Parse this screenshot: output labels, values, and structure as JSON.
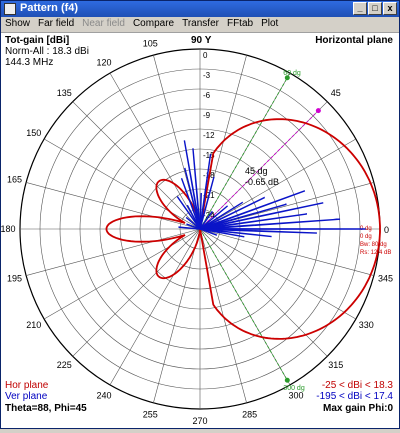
{
  "window": {
    "title": "Pattern",
    "subtitle": "(f4)",
    "buttons": [
      "_",
      "□",
      "x"
    ]
  },
  "menu": [
    {
      "label": "Show",
      "enabled": true
    },
    {
      "label": "Far field",
      "enabled": true
    },
    {
      "label": "Near field",
      "enabled": false
    },
    {
      "label": "Compare",
      "enabled": true
    },
    {
      "label": "Transfer",
      "enabled": true
    },
    {
      "label": "FFtab",
      "enabled": true
    },
    {
      "label": "Plot",
      "enabled": true
    }
  ],
  "info": {
    "gain_title": "Tot-gain [dBi]",
    "norm": "Norm-All : 18.3 dBi",
    "freq": "144.3 MHz",
    "plane": "Horizontal plane",
    "y_axis": "90 Y",
    "x_axis": "0",
    "beam_angle": "45 dg",
    "beam_db": "-0.65 dB",
    "marker_top": "60 dg",
    "marker_bottom": "300 dg",
    "right_labels": [
      "0 dg",
      "0 dg",
      "Bw: 80 dg",
      "Rs: 12.4 dB"
    ],
    "legend_hor": "Hor plane",
    "legend_ver": "Ver plane",
    "range_hor": "-25 < dBi < 18.3",
    "range_ver": "-195 < dBi < 17.4",
    "theta_phi": "Theta=88, Phi=45",
    "max_gain": "Max gain Phi:0"
  },
  "scale_labels": [
    "0",
    "-3",
    "-6",
    "-9",
    "-12",
    "-15",
    "-18",
    "-21",
    "-24"
  ],
  "angle_labels": [
    {
      "deg": 105,
      "text": "105"
    },
    {
      "deg": 120,
      "text": "120"
    },
    {
      "deg": 135,
      "text": "135"
    },
    {
      "deg": 150,
      "text": "150"
    },
    {
      "deg": 165,
      "text": "165"
    },
    {
      "deg": 180,
      "text": "180"
    },
    {
      "deg": 195,
      "text": "195"
    },
    {
      "deg": 210,
      "text": "210"
    },
    {
      "deg": 225,
      "text": "225"
    },
    {
      "deg": 240,
      "text": "240"
    },
    {
      "deg": 255,
      "text": "255"
    },
    {
      "deg": 270,
      "text": "270"
    },
    {
      "deg": 285,
      "text": "285"
    },
    {
      "deg": 300,
      "text": "300"
    },
    {
      "deg": 315,
      "text": "315"
    },
    {
      "deg": 330,
      "text": "330"
    },
    {
      "deg": 345,
      "text": "345"
    },
    {
      "deg": 45,
      "text": "45"
    }
  ],
  "colors": {
    "hor": "#cc0000",
    "ver": "#0a14c8",
    "grid": "#555555",
    "green": "#2a9a2a",
    "magenta": "#d000d0"
  }
}
